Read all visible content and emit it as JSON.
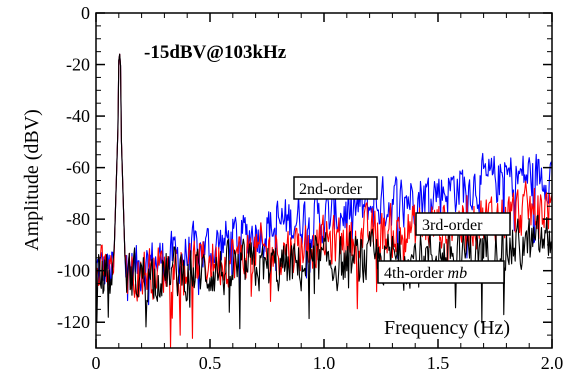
{
  "chart_data": {
    "type": "line",
    "title": "",
    "annotation": "-15dBV@103kHz",
    "xlabel": "Frequency (Hz)",
    "ylabel": "Amplitude (dBV)",
    "xlim": [
      0,
      2.0
    ],
    "ylim": [
      -130,
      0
    ],
    "xticks": [
      0,
      0.5,
      1.0,
      1.5,
      2.0
    ],
    "xtick_labels": [
      "0",
      "0.5",
      "1.0",
      "1.5",
      "2.0"
    ],
    "yticks": [
      0,
      -20,
      -40,
      -60,
      -80,
      -100,
      -120
    ],
    "ytick_labels": [
      "0",
      "-20",
      "-40",
      "-60",
      "-80",
      "-100",
      "-120"
    ],
    "grid": false,
    "peak": {
      "x": 0.103,
      "y": -15
    },
    "series": [
      {
        "name": "2nd-order",
        "color": "#0000ff",
        "label_position": "upper-middle",
        "x": [
          0.0,
          0.1,
          0.2,
          0.3,
          0.4,
          0.5,
          0.6,
          0.7,
          0.8,
          0.9,
          1.0,
          1.1,
          1.2,
          1.3,
          1.4,
          1.5,
          1.6,
          1.7,
          1.8,
          1.9,
          2.0
        ],
        "y": [
          -100,
          -100,
          -98,
          -96,
          -94,
          -91,
          -88,
          -85,
          -82,
          -79,
          -80,
          -77,
          -75,
          -73,
          -71,
          -69,
          -67,
          -66,
          -64,
          -63,
          -62
        ]
      },
      {
        "name": "3rd-order",
        "color": "#ff0000",
        "label_position": "right-middle",
        "x": [
          0.0,
          0.1,
          0.2,
          0.3,
          0.4,
          0.5,
          0.6,
          0.7,
          0.8,
          0.9,
          1.0,
          1.1,
          1.2,
          1.3,
          1.4,
          1.5,
          1.6,
          1.7,
          1.8,
          1.9,
          2.0
        ],
        "y": [
          -101,
          -101,
          -100,
          -99,
          -98,
          -96,
          -95,
          -93,
          -92,
          -90,
          -89,
          -88,
          -86,
          -85,
          -84,
          -82,
          -81,
          -80,
          -78,
          -77,
          -75
        ]
      },
      {
        "name": "4th-order mb",
        "name_plain": "4th-order ",
        "name_italic": "mb",
        "color": "#000000",
        "label_position": "right-lower",
        "x": [
          0.0,
          0.1,
          0.2,
          0.3,
          0.4,
          0.5,
          0.6,
          0.7,
          0.8,
          0.9,
          1.0,
          1.1,
          1.2,
          1.3,
          1.4,
          1.5,
          1.6,
          1.7,
          1.8,
          1.9,
          2.0
        ],
        "y": [
          -102,
          -102,
          -102,
          -101,
          -101,
          -100,
          -100,
          -99,
          -99,
          -98,
          -97,
          -97,
          -96,
          -95,
          -95,
          -94,
          -93,
          -92,
          -91,
          -90,
          -88
        ]
      }
    ]
  }
}
